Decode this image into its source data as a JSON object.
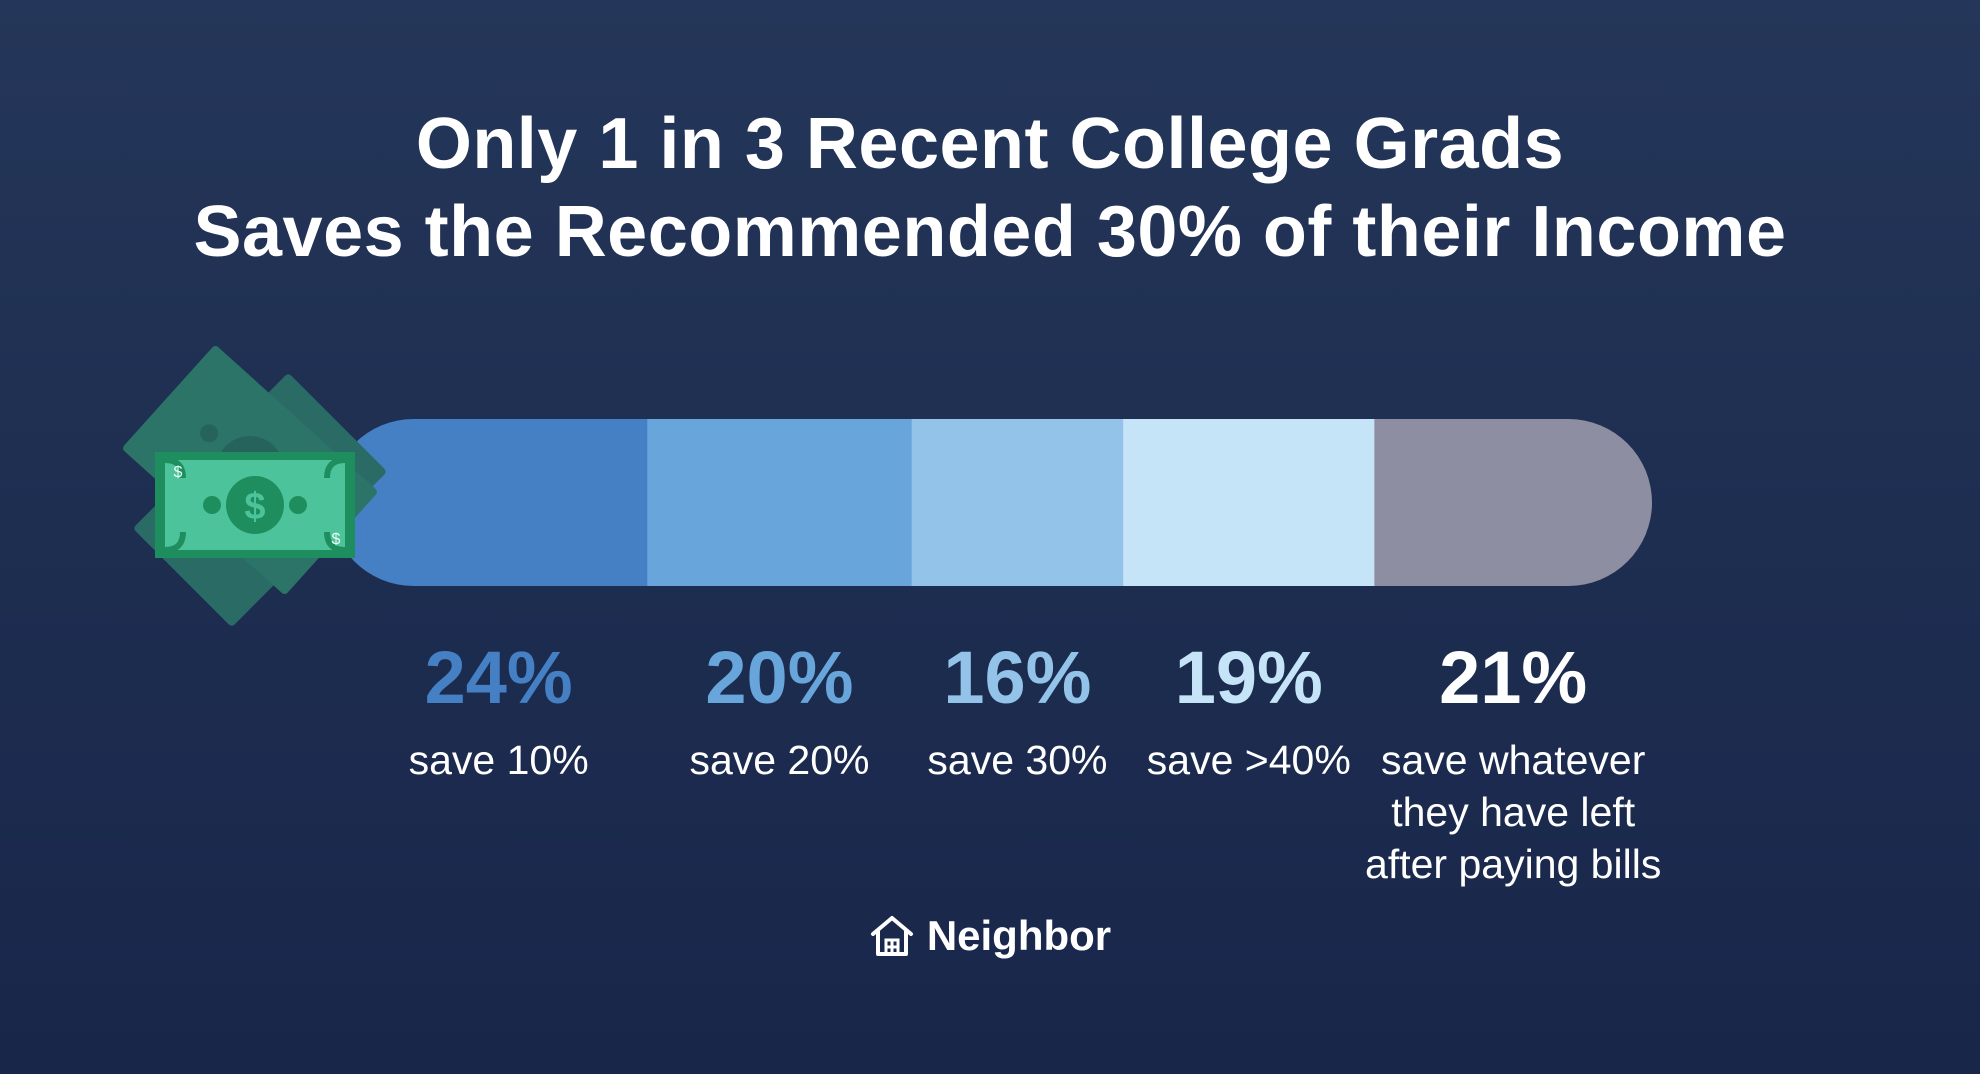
{
  "title_lines": [
    "Only 1 in 3 Recent College Grads",
    "Saves the Recommended 30% of their Income"
  ],
  "chart_data": {
    "type": "bar",
    "orientation": "horizontal-stacked",
    "categories": [
      "save 10%",
      "save 20%",
      "save 30%",
      "save >40%",
      "save whatever they have left after paying bills"
    ],
    "values": [
      24,
      20,
      16,
      19,
      21
    ],
    "value_labels": [
      "24%",
      "20%",
      "16%",
      "19%",
      "21%"
    ],
    "colors": [
      "#4580c4",
      "#67a5db",
      "#93c3e8",
      "#c6e4f7",
      "#8e8ea2"
    ],
    "label_colors": [
      "#4580c4",
      "#67a5db",
      "#93c3e8",
      "#c6e4f7",
      "#ffffff"
    ],
    "title": "Only 1 in 3 Recent College Grads Saves the Recommended 30% of their Income"
  },
  "segments": [
    {
      "pct": "24%",
      "desc": "save 10%"
    },
    {
      "pct": "20%",
      "desc": "save 20%"
    },
    {
      "pct": "16%",
      "desc": "save 30%"
    },
    {
      "pct": "19%",
      "desc": "save >40%"
    },
    {
      "pct": "21%",
      "desc": "save whatever\nthey have left\nafter paying bills"
    }
  ],
  "brand": {
    "name": "Neighbor",
    "icon": "house-icon"
  },
  "decoration": {
    "icon": "money-bills-icon",
    "bill_symbol": "$"
  },
  "colors": {
    "background": "#1f2f52",
    "bill_front": "#2f9e74",
    "bill_back": "#2a6b66"
  }
}
